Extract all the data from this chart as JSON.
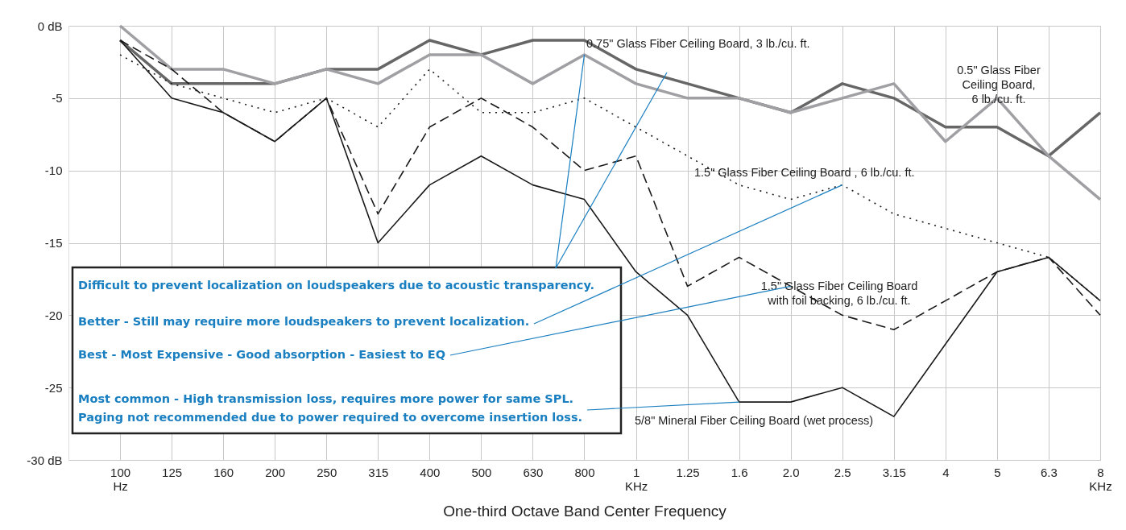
{
  "chart_data": {
    "type": "line",
    "xlabel": "One-third Octave Band Center Frequency",
    "categories": [
      "100\nHz",
      "125",
      "160",
      "200",
      "250",
      "315",
      "400",
      "500",
      "630",
      "800",
      "1\nKHz",
      "1.25",
      "1.6",
      "2.0",
      "2.5",
      "3.15",
      "4",
      "5",
      "6.3",
      "8\nKHz"
    ],
    "series": [
      {
        "color": "#666666",
        "line_style": "solid",
        "values": [
          -1,
          -4,
          -4,
          -4,
          -3,
          -3,
          -1,
          -2,
          -1,
          -1,
          -3,
          -4,
          -5,
          -6,
          -4,
          -5,
          -7,
          -7,
          -9,
          -6
        ]
      },
      {
        "color": "#a0a0a4",
        "line_style": "solid",
        "values": [
          0,
          -3,
          -3,
          -4,
          -3,
          -4,
          -2,
          -2,
          -4,
          -2,
          -4,
          -5,
          -5,
          -6,
          -5,
          -4,
          -8,
          -5,
          -9,
          -12
        ]
      },
      {
        "color": "#1a1a1a",
        "line_style": "dotted",
        "values": [
          -2,
          -4,
          -5,
          -6,
          -5,
          -7,
          -3,
          -6,
          -6,
          -5,
          -7,
          -9,
          -11,
          -12,
          -11,
          -13,
          -14,
          -15,
          -16,
          -19
        ]
      },
      {
        "color": "#1a1a1a",
        "line_style": "dashed",
        "values": [
          -1,
          -3,
          -6,
          -8,
          -5,
          -13,
          -7,
          -5,
          -7,
          -10,
          -9,
          -18,
          -16,
          -18,
          -20,
          -21,
          -19,
          -17,
          -16,
          -20
        ]
      },
      {
        "color": "#1a1a1a",
        "line_style": "solid",
        "values": [
          -1,
          -5,
          -6,
          -8,
          -5,
          -15,
          -11,
          -9,
          -11,
          -12,
          -17,
          -20,
          -26,
          -26,
          -25,
          -27,
          -22,
          -17,
          -16,
          -19
        ]
      }
    ],
    "ylim": [
      -30,
      0
    ],
    "yticks": [
      {
        "value": -30,
        "label": "-30 dB"
      },
      -25,
      -20,
      -15,
      -10,
      -5,
      {
        "value": 0,
        "label": "0 dB"
      }
    ],
    "grid": true,
    "marker": "none",
    "annotations": [
      "0.75\" Glass Fiber Ceiling Board, 3 lb./cu. ft.",
      "0.5\" Glass Fiber\nCeiling Board,\n6 lb./cu. ft.",
      "1.5\" Glass Fiber Ceiling Board , 6 lb./cu. ft.",
      "1.5\" Glass Fiber Ceiling Board\nwith foil backing, 6 lb./cu. ft.",
      "5/8\" Mineral Fiber Ceiling Board (wet process)",
      {
        "text": "Difficult to prevent localization on loudspeakers due to acoustic transparency.",
        "x": "800",
        "y": -2
      },
      {
        "text": "Better - Still may require more loudspeakers to prevent localization.",
        "x": "2.5",
        "y": -11
      },
      {
        "text": "Best - Most Expensive - Good absorption - Easiest to EQ",
        "x": "2.0",
        "y": -18
      },
      {
        "text": "Most common - High transmission loss, requires more power for same SPL.\nPaging not recommended due to power required to overcome insertion loss.",
        "x": "1.6",
        "y": -26
      }
    ]
  }
}
